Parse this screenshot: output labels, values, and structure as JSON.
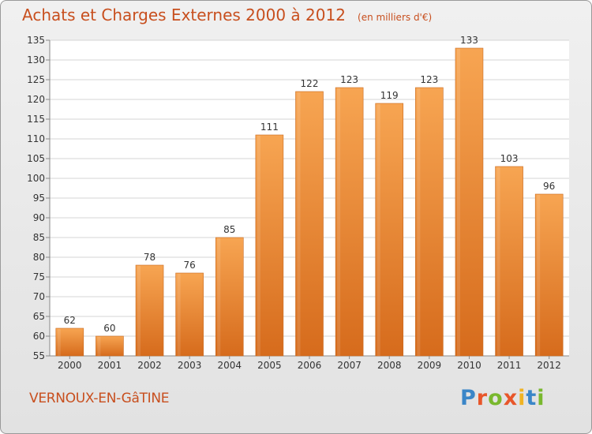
{
  "chart_data": {
    "type": "bar",
    "title": "Achats et Charges Externes 2000 à 2012",
    "unit_note": "(en milliers d'€)",
    "categories": [
      "2000",
      "2001",
      "2002",
      "2003",
      "2004",
      "2005",
      "2006",
      "2007",
      "2008",
      "2009",
      "2010",
      "2011",
      "2012"
    ],
    "values": [
      62,
      60,
      78,
      76,
      85,
      111,
      122,
      123,
      119,
      123,
      133,
      103,
      96
    ],
    "ylim": [
      55,
      135
    ],
    "yticks": [
      55,
      60,
      65,
      70,
      75,
      80,
      85,
      90,
      95,
      100,
      105,
      110,
      115,
      120,
      125,
      130,
      135
    ],
    "grid": true,
    "bar_color_top": "#f7a552",
    "bar_color_bottom": "#d66b1c"
  },
  "location": "VERNOUX-EN-GâTINE",
  "brand": {
    "text": "Proxiti",
    "letter_colors": [
      "#3a86c8",
      "#e8562a",
      "#79b82e",
      "#e8562a",
      "#f0b323",
      "#3a86c8",
      "#79b82e"
    ]
  }
}
